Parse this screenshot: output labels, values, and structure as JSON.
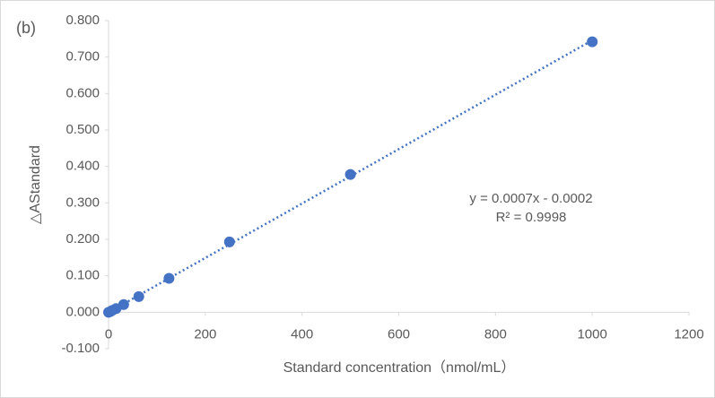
{
  "chart_data": {
    "type": "scatter",
    "panel_label": "(b)",
    "xlabel": "Standard concentration（nmol/mL）",
    "ylabel": "△AStandard",
    "annotation": [
      "y = 0.0007x - 0.0002",
      "R² = 0.9998"
    ],
    "series": [
      {
        "name": "Standard",
        "color": "#4472c4",
        "x": [
          0,
          3.9,
          7.8,
          15.6,
          31.25,
          62.5,
          125,
          250,
          500,
          1000
        ],
        "values": [
          0.0,
          0.002,
          0.005,
          0.01,
          0.021,
          0.043,
          0.093,
          0.193,
          0.378,
          0.742
        ]
      }
    ],
    "trendline": true,
    "xlim": [
      0,
      1200
    ],
    "xticks": [
      0,
      200,
      400,
      600,
      800,
      1000,
      1200
    ],
    "ylim": [
      -0.1,
      0.8
    ],
    "yticks": [
      {
        "value": -0.1,
        "label": "-0.100"
      },
      {
        "value": 0,
        "label": "0.000"
      },
      {
        "value": 0.1,
        "label": "0.100"
      },
      {
        "value": 0.2,
        "label": "0.200"
      },
      {
        "value": 0.3,
        "label": "0.300"
      },
      {
        "value": 0.4,
        "label": "0.400"
      },
      {
        "value": 0.5,
        "label": "0.500"
      },
      {
        "value": 0.6,
        "label": "0.600"
      },
      {
        "value": 0.7,
        "label": "0.700"
      },
      {
        "value": 0.8,
        "label": "0.800"
      }
    ]
  }
}
